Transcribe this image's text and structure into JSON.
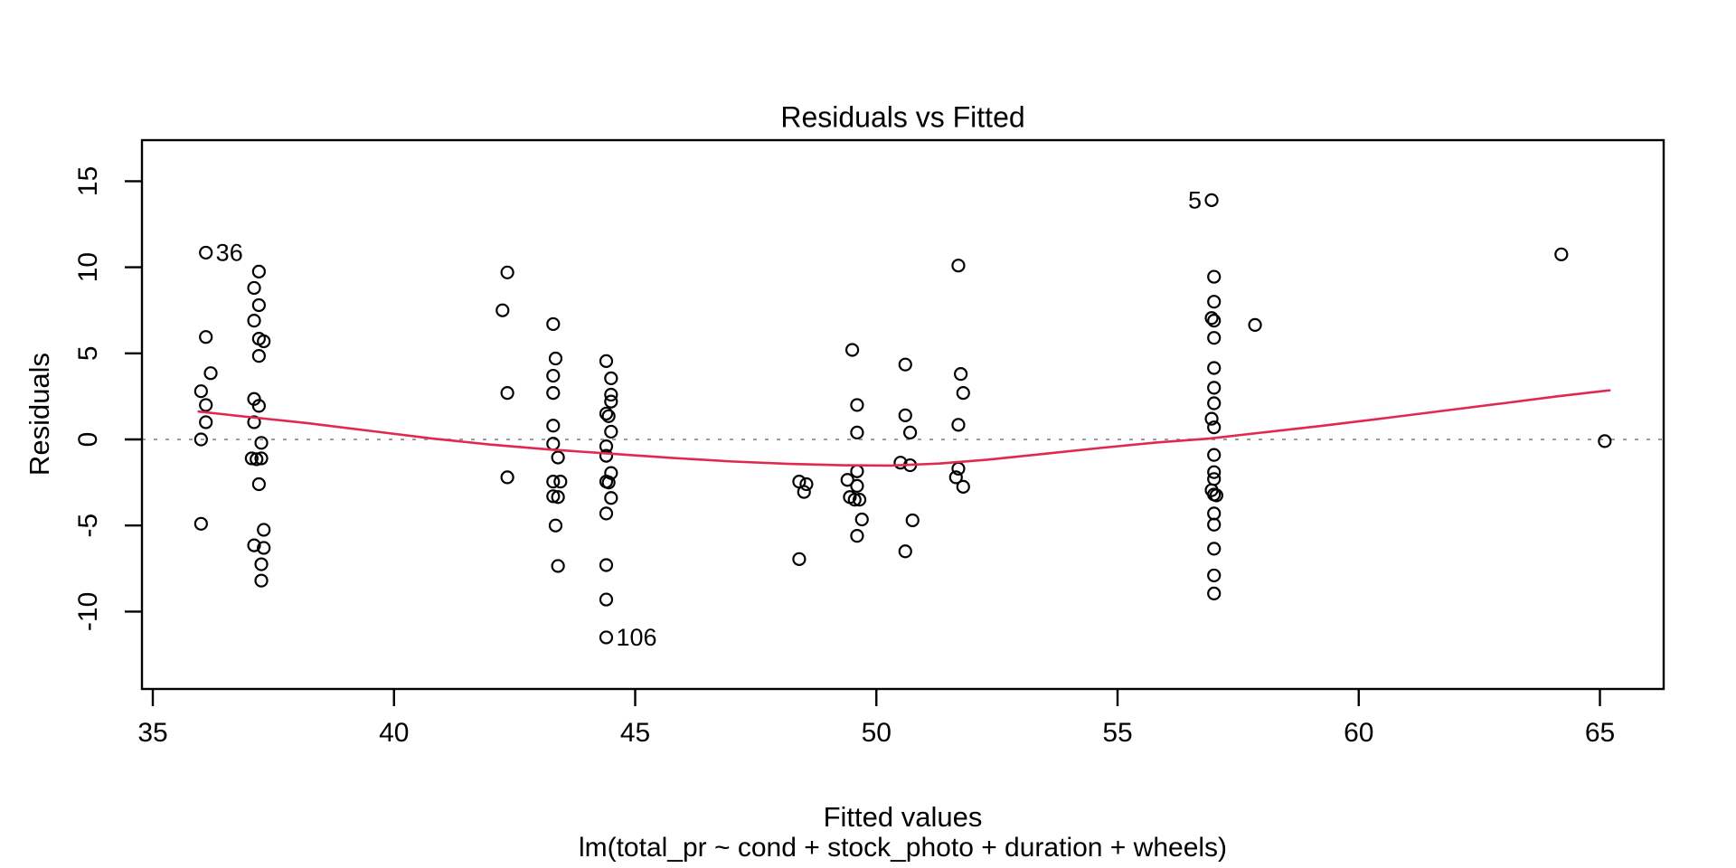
{
  "chart_data": {
    "type": "scatter",
    "title": "Residuals vs Fitted",
    "xlabel": "Fitted values",
    "ylabel": "Residuals",
    "caption": "lm(total_pr ~ cond + stock_photo + duration + wheels)",
    "x_ticks": [
      35,
      40,
      45,
      50,
      55,
      60,
      65
    ],
    "y_ticks": [
      -10,
      -5,
      0,
      5,
      10,
      15
    ],
    "xlim": [
      34.8,
      66.3
    ],
    "ylim": [
      -14.5,
      17.4
    ],
    "grid": false,
    "zero_line_y": 0,
    "legend": null,
    "colors": {
      "points": "#000000",
      "smooth": "#e0294f",
      "zero_line": "#9b9b9b",
      "axis": "#000000"
    },
    "points": [
      [
        36.1,
        10.85
      ],
      [
        36.1,
        5.95
      ],
      [
        36.2,
        3.85
      ],
      [
        36.0,
        2.8
      ],
      [
        36.1,
        2.0
      ],
      [
        36.1,
        1.0
      ],
      [
        36.0,
        0.0
      ],
      [
        36.0,
        -4.9
      ],
      [
        37.2,
        9.75
      ],
      [
        37.1,
        8.8
      ],
      [
        37.2,
        7.8
      ],
      [
        37.1,
        6.9
      ],
      [
        37.2,
        5.85
      ],
      [
        37.3,
        5.7
      ],
      [
        37.2,
        4.85
      ],
      [
        37.1,
        2.35
      ],
      [
        37.2,
        1.95
      ],
      [
        37.1,
        1.0
      ],
      [
        37.25,
        -0.2
      ],
      [
        37.05,
        -1.1
      ],
      [
        37.15,
        -1.15
      ],
      [
        37.25,
        -1.1
      ],
      [
        37.2,
        -2.6
      ],
      [
        37.3,
        -5.25
      ],
      [
        37.1,
        -6.15
      ],
      [
        37.3,
        -6.3
      ],
      [
        37.25,
        -7.25
      ],
      [
        37.25,
        -8.2
      ],
      [
        42.35,
        9.7
      ],
      [
        42.25,
        7.5
      ],
      [
        42.35,
        2.7
      ],
      [
        42.35,
        -2.2
      ],
      [
        43.3,
        6.7
      ],
      [
        43.35,
        4.7
      ],
      [
        43.3,
        3.7
      ],
      [
        43.3,
        2.7
      ],
      [
        43.3,
        0.8
      ],
      [
        43.3,
        -0.25
      ],
      [
        43.4,
        -1.05
      ],
      [
        43.3,
        -2.45
      ],
      [
        43.45,
        -2.45
      ],
      [
        43.3,
        -3.3
      ],
      [
        43.4,
        -3.35
      ],
      [
        43.35,
        -5.0
      ],
      [
        43.4,
        -7.35
      ],
      [
        44.4,
        4.55
      ],
      [
        44.5,
        3.55
      ],
      [
        44.5,
        2.6
      ],
      [
        44.5,
        2.2
      ],
      [
        44.4,
        1.5
      ],
      [
        44.45,
        1.35
      ],
      [
        44.5,
        0.45
      ],
      [
        44.4,
        -0.4
      ],
      [
        44.4,
        -0.95
      ],
      [
        44.5,
        -1.95
      ],
      [
        44.4,
        -2.45
      ],
      [
        44.45,
        -2.5
      ],
      [
        44.5,
        -3.4
      ],
      [
        44.4,
        -4.3
      ],
      [
        44.4,
        -7.3
      ],
      [
        44.4,
        -9.3
      ],
      [
        44.4,
        -11.5
      ],
      [
        48.4,
        -2.45
      ],
      [
        48.55,
        -2.6
      ],
      [
        48.5,
        -3.05
      ],
      [
        48.4,
        -6.95
      ],
      [
        49.5,
        5.2
      ],
      [
        49.6,
        2.0
      ],
      [
        49.6,
        0.4
      ],
      [
        49.6,
        -1.85
      ],
      [
        49.4,
        -2.35
      ],
      [
        49.6,
        -2.7
      ],
      [
        49.45,
        -3.35
      ],
      [
        49.55,
        -3.5
      ],
      [
        49.65,
        -3.5
      ],
      [
        49.7,
        -4.65
      ],
      [
        49.6,
        -5.6
      ],
      [
        50.6,
        4.35
      ],
      [
        50.6,
        1.4
      ],
      [
        50.7,
        0.4
      ],
      [
        50.5,
        -1.35
      ],
      [
        50.7,
        -1.5
      ],
      [
        50.75,
        -4.7
      ],
      [
        50.6,
        -6.5
      ],
      [
        51.7,
        10.1
      ],
      [
        51.75,
        3.8
      ],
      [
        51.8,
        2.7
      ],
      [
        51.7,
        0.85
      ],
      [
        51.7,
        -1.7
      ],
      [
        51.65,
        -2.2
      ],
      [
        51.8,
        -2.75
      ],
      [
        56.95,
        13.9
      ],
      [
        57.0,
        9.45
      ],
      [
        57.0,
        8.0
      ],
      [
        56.95,
        7.05
      ],
      [
        57.0,
        6.9
      ],
      [
        57.0,
        5.9
      ],
      [
        57.0,
        4.15
      ],
      [
        57.0,
        3.0
      ],
      [
        57.0,
        2.1
      ],
      [
        56.95,
        1.2
      ],
      [
        57.0,
        0.7
      ],
      [
        57.0,
        -0.9
      ],
      [
        57.0,
        -1.9
      ],
      [
        57.0,
        -2.3
      ],
      [
        56.95,
        -2.95
      ],
      [
        57.0,
        -3.2
      ],
      [
        57.05,
        -3.25
      ],
      [
        57.0,
        -4.3
      ],
      [
        57.0,
        -4.95
      ],
      [
        57.0,
        -6.35
      ],
      [
        57.0,
        -7.9
      ],
      [
        57.0,
        -8.95
      ],
      [
        57.85,
        6.65
      ],
      [
        64.2,
        10.75
      ],
      [
        65.1,
        -0.1
      ]
    ],
    "labeled_points": [
      {
        "label": "36",
        "x": 36.1,
        "y": 10.85,
        "side": "right"
      },
      {
        "label": "5",
        "x": 56.95,
        "y": 13.9,
        "side": "left"
      },
      {
        "label": "106",
        "x": 44.4,
        "y": -11.5,
        "side": "right"
      }
    ],
    "smooth_line": [
      [
        35.95,
        1.62
      ],
      [
        37.0,
        1.3
      ],
      [
        38.2,
        0.95
      ],
      [
        39.5,
        0.5
      ],
      [
        40.8,
        0.05
      ],
      [
        42.0,
        -0.3
      ],
      [
        43.2,
        -0.58
      ],
      [
        44.5,
        -0.83
      ],
      [
        45.8,
        -1.08
      ],
      [
        47.0,
        -1.28
      ],
      [
        48.2,
        -1.42
      ],
      [
        49.3,
        -1.5
      ],
      [
        50.3,
        -1.52
      ],
      [
        51.3,
        -1.4
      ],
      [
        52.3,
        -1.18
      ],
      [
        53.5,
        -0.83
      ],
      [
        54.7,
        -0.48
      ],
      [
        55.8,
        -0.18
      ],
      [
        56.9,
        0.05
      ],
      [
        58.0,
        0.4
      ],
      [
        59.2,
        0.78
      ],
      [
        60.5,
        1.22
      ],
      [
        61.8,
        1.68
      ],
      [
        63.0,
        2.1
      ],
      [
        64.1,
        2.5
      ],
      [
        65.2,
        2.85
      ]
    ]
  }
}
